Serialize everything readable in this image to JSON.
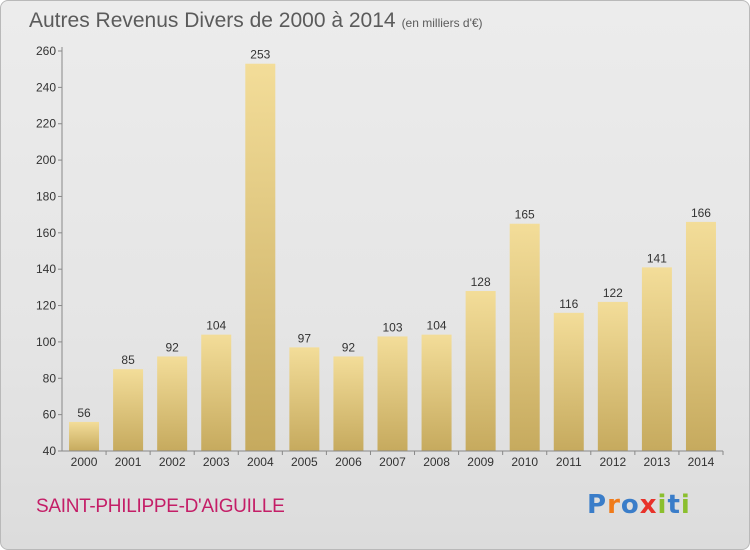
{
  "title": "Autres Revenus Divers de 2000 à 2014",
  "subtitle": "(en milliers d'€)",
  "commune": "SAINT-PHILIPPE-D'AIGUILLE",
  "logo": {
    "text": "Proxiti",
    "colors": [
      "#3a7dc9",
      "#f07b1a",
      "#3a7dc9",
      "#e8322a",
      "#8bbf2e",
      "#3a7dc9",
      "#8bbf2e"
    ]
  },
  "colors": {
    "commune": "#c41e67",
    "bar_light": "#f3dd99",
    "bar_dark": "#c6aa5e",
    "axis": "#888888",
    "text": "#333333"
  },
  "chart_data": {
    "type": "bar",
    "categories": [
      "2000",
      "2001",
      "2002",
      "2003",
      "2004",
      "2005",
      "2006",
      "2007",
      "2008",
      "2009",
      "2010",
      "2011",
      "2012",
      "2013",
      "2014"
    ],
    "values": [
      56,
      85,
      92,
      104,
      253,
      97,
      92,
      103,
      104,
      128,
      165,
      116,
      122,
      141,
      166
    ],
    "ylim": [
      40,
      260
    ],
    "yticks": [
      40,
      60,
      80,
      100,
      120,
      140,
      160,
      180,
      200,
      220,
      240,
      260
    ],
    "grid": false
  }
}
